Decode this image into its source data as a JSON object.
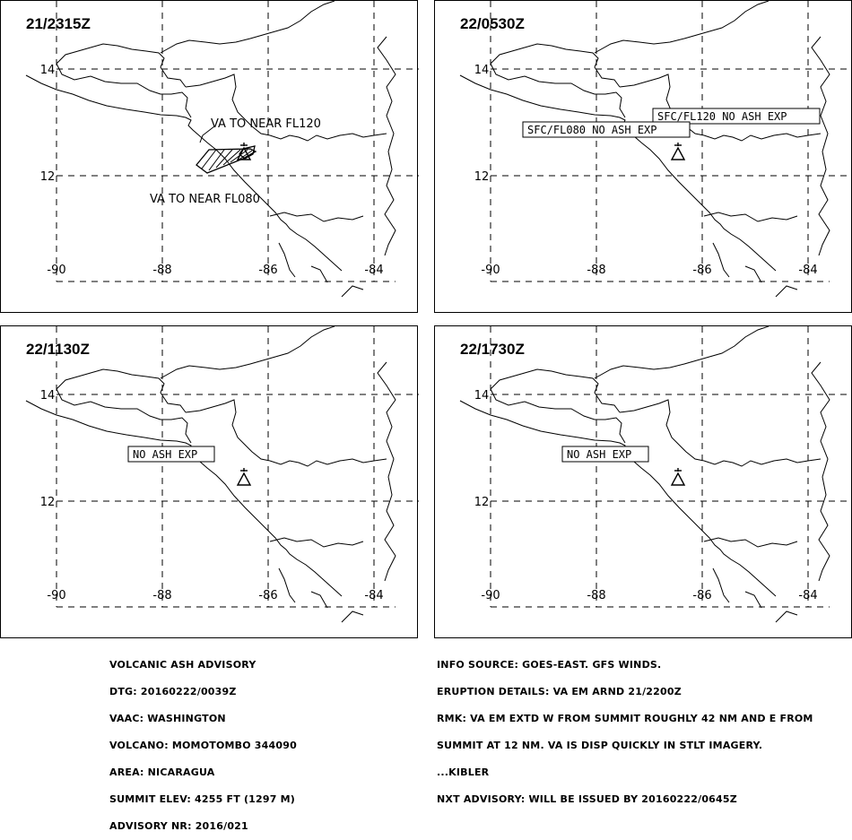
{
  "panels": [
    {
      "time": "21/2315Z",
      "labels": [
        {
          "text": "VA TO NEAR FL120",
          "boxed": false
        },
        {
          "text": "VA TO NEAR FL080",
          "boxed": false
        }
      ]
    },
    {
      "time": "22/0530Z",
      "labels": [
        {
          "text": "SFC/FL120 NO ASH EXP",
          "boxed": true
        },
        {
          "text": "SFC/FL080 NO ASH EXP",
          "boxed": true
        }
      ]
    },
    {
      "time": "22/1130Z",
      "labels": [
        {
          "text": "NO ASH EXP",
          "boxed": true
        }
      ]
    },
    {
      "time": "22/1730Z",
      "labels": [
        {
          "text": "NO ASH EXP",
          "boxed": true
        }
      ]
    }
  ],
  "lat_ticks": [
    "14",
    "12"
  ],
  "lon_ticks": [
    "-90",
    "-88",
    "-86",
    "-84"
  ],
  "advisory": {
    "lines": [
      "VOLCANIC ASH ADVISORY",
      "DTG: 20160222/0039Z",
      "VAAC: WASHINGTON",
      "VOLCANO: MOMOTOMBO 344090",
      "AREA: NICARAGUA",
      "SUMMIT ELEV: 4255 FT (1297 M)",
      "ADVISORY NR: 2016/021"
    ]
  },
  "info": {
    "lines": [
      "INFO SOURCE: GOES-EAST. GFS WINDS.",
      "ERUPTION DETAILS: VA EM ARND 21/2200Z",
      "RMK: VA EM EXTD W FROM SUMMIT ROUGHLY 42 NM AND E FROM",
      "SUMMIT AT 12 NM. VA IS DISP QUICKLY IN STLT IMAGERY.",
      "...KIBLER",
      "NXT ADVISORY: WILL BE ISSUED BY 20160222/0645Z"
    ]
  },
  "colors": {
    "line": "#000000",
    "background": "#ffffff"
  }
}
